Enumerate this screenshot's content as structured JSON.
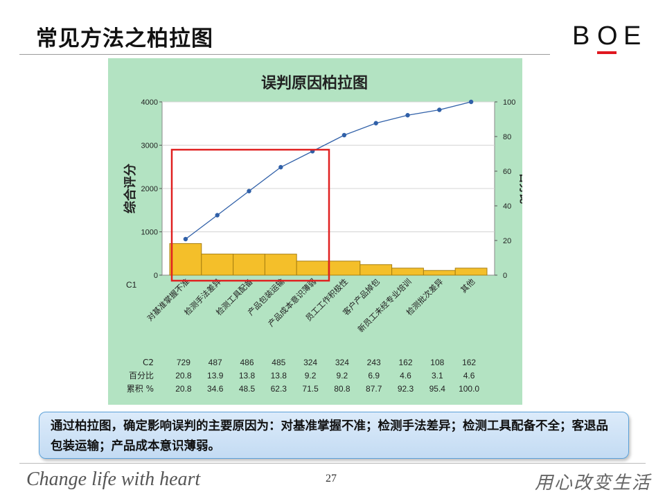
{
  "slide": {
    "title": "常见方法之柏拉图",
    "logo_letters": [
      "B",
      "O",
      "E"
    ],
    "logo_accent_color": "#e0171f",
    "conclusion_text": "通过柏拉图，确定影响误判的主要原因为：对基准掌握不准；检测手法差异；检测工具配备不全；客退品包装运输；产品成本意识薄弱。",
    "footer_slogan": "Change life with heart",
    "page_number": "27",
    "footer_motto": "用心改变生活"
  },
  "chart_data": {
    "type": "bar",
    "title": "误判原因柏拉图",
    "ylabel": "综合评分",
    "y2label": "百分比",
    "category_axis_label": "C1",
    "categories": [
      "对基准掌握不准",
      "检测手法差异",
      "检测工具配备",
      "产品包装运输",
      "产品成本意识薄弱",
      "员工工作积极性",
      "客户产品掉包",
      "新员工未经专业培训",
      "检测批次差异",
      "其他"
    ],
    "ylim": [
      0,
      4000
    ],
    "yticks": [
      0,
      1000,
      2000,
      3000,
      4000
    ],
    "y2lim": [
      0,
      100
    ],
    "y2ticks": [
      0,
      20,
      40,
      60,
      80,
      100
    ],
    "series": [
      {
        "name": "C2",
        "type": "bar",
        "axis": "left",
        "values": [
          729,
          487,
          486,
          485,
          324,
          324,
          243,
          162,
          108,
          162
        ]
      },
      {
        "name": "累积 %",
        "type": "line",
        "axis": "right",
        "values": [
          20.8,
          34.6,
          48.5,
          62.3,
          71.5,
          80.8,
          87.7,
          92.3,
          95.4,
          100.0
        ]
      }
    ],
    "table": {
      "row_labels": [
        "C2",
        "百分比",
        "累积 %"
      ],
      "rows": [
        [
          "729",
          "487",
          "486",
          "485",
          "324",
          "324",
          "243",
          "162",
          "108",
          "162"
        ],
        [
          "20.8",
          "13.9",
          "13.8",
          "13.8",
          "9.2",
          "9.2",
          "6.9",
          "4.6",
          "3.1",
          "4.6"
        ],
        [
          "20.8",
          "34.6",
          "48.5",
          "62.3",
          "71.5",
          "80.8",
          "87.7",
          "92.3",
          "95.4",
          "100.0"
        ]
      ]
    },
    "highlight_range": [
      "对基准掌握不准",
      "产品成本意识薄弱"
    ],
    "colors": {
      "background": "#b3e3c2",
      "bar_fill": "#f4bf2a",
      "bar_stroke": "#a77f10",
      "line": "#3060a8",
      "highlight": "#e02020"
    }
  }
}
